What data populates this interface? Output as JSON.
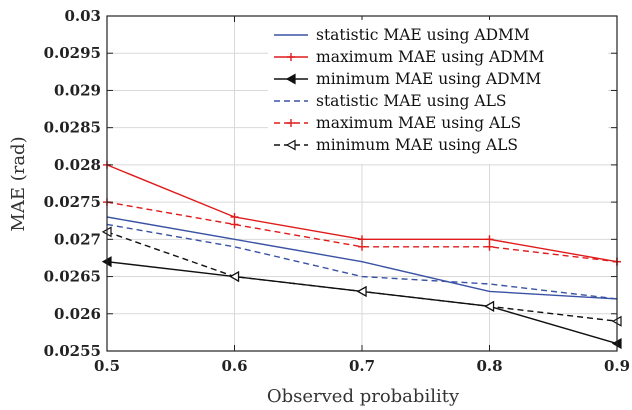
{
  "chart_data": {
    "type": "line",
    "xlabel": "Observed probability",
    "ylabel": "MAE (rad)",
    "xlim": [
      0.5,
      0.9
    ],
    "ylim": [
      0.0255,
      0.03
    ],
    "grid": true,
    "legend_position": "top-right",
    "x_ticks": [
      "0.5",
      "0.6",
      "0.7",
      "0.8",
      "0.9"
    ],
    "y_ticks": [
      "0.0255",
      "0.026",
      "0.0265",
      "0.027",
      "0.0275",
      "0.028",
      "0.0285",
      "0.029",
      "0.0295",
      "0.03"
    ],
    "x": [
      0.5,
      0.6,
      0.7,
      0.8,
      0.9
    ],
    "series": [
      {
        "name": "statistic MAE using ADMM",
        "values": [
          0.0273,
          0.027,
          0.0267,
          0.0263,
          0.0262
        ],
        "color": "#3a52a4",
        "line": "solid",
        "marker": "none"
      },
      {
        "name": "maximum MAE using ADMM",
        "values": [
          0.028,
          0.0273,
          0.027,
          0.027,
          0.0267
        ],
        "color": "#e01b1b",
        "line": "solid",
        "marker": "plus"
      },
      {
        "name": "minimum MAE using ADMM",
        "values": [
          0.0267,
          0.0265,
          0.0263,
          0.0261,
          0.0256
        ],
        "color": "#111111",
        "line": "solid",
        "marker": "left-triangle-filled"
      },
      {
        "name": "statistic MAE using ALS",
        "values": [
          0.0272,
          0.0269,
          0.0265,
          0.0264,
          0.0262
        ],
        "color": "#3a52a4",
        "line": "dashed",
        "marker": "none"
      },
      {
        "name": "maximum MAE using ALS",
        "values": [
          0.0275,
          0.0272,
          0.0269,
          0.0269,
          0.0267
        ],
        "color": "#e01b1b",
        "line": "dashed",
        "marker": "plus"
      },
      {
        "name": "minimum MAE using ALS",
        "values": [
          0.0271,
          0.0265,
          0.0263,
          0.0261,
          0.0259
        ],
        "color": "#111111",
        "line": "dashed",
        "marker": "left-triangle-open"
      }
    ]
  }
}
